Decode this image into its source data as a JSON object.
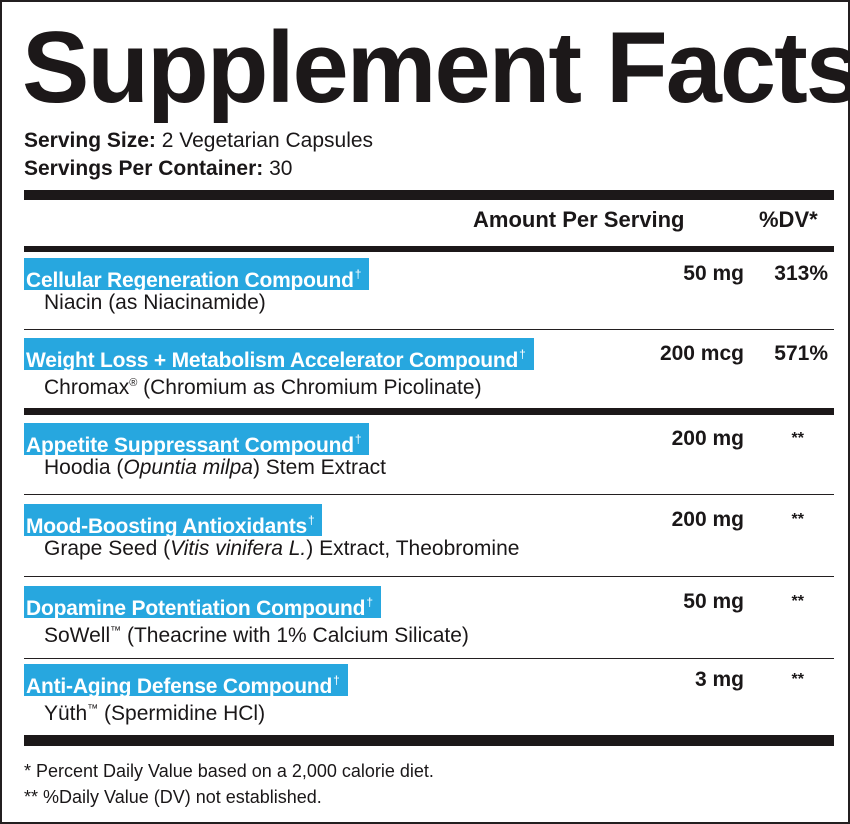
{
  "title": "Supplement Facts",
  "serving_size": {
    "label": "Serving Size:",
    "value": " 2 Vegetarian Capsules"
  },
  "servings_per_container": {
    "label": "Servings Per Container:",
    "value": " 30"
  },
  "header": {
    "amount": "Amount Per Serving",
    "dv": "%DV*"
  },
  "dagger": "†",
  "rows": [
    {
      "compound": "Cellular Regeneration Compound",
      "detail": [
        "Niacin (as Niacinamide)"
      ],
      "amount": "50 mg",
      "dv": "313%"
    },
    {
      "compound": "Weight Loss + Metabolism Accelerator Compound",
      "detail": [
        "Chromax",
        "®",
        " (Chromium as Chromium Picolinate)"
      ],
      "amount": "200 mcg",
      "dv": "571%"
    },
    {
      "compound": "Appetite Suppressant Compound",
      "detail": [
        "Hoodia (",
        "Opuntia milpa",
        ") Stem Extract"
      ],
      "amount": "200 mg",
      "dv": "**"
    },
    {
      "compound": "Mood-Boosting Antioxidants",
      "detail": [
        "Grape Seed (",
        "Vitis vinifera L.",
        ") Extract, Theobromine"
      ],
      "amount": "200 mg",
      "dv": "**"
    },
    {
      "compound": "Dopamine Potentiation Compound",
      "detail": [
        "SoWell",
        "™",
        " (Theacrine with 1% Calcium Silicate)"
      ],
      "amount": "50 mg",
      "dv": "**"
    },
    {
      "compound": "Anti-Aging Defense Compound",
      "detail": [
        "Yüth",
        "™",
        " (Spermidine HCl)"
      ],
      "amount": "3 mg",
      "dv": "**"
    }
  ],
  "footnotes": [
    "* Percent Daily Value based on a 2,000 calorie diet.",
    "** %Daily Value (DV) not established."
  ],
  "colors": {
    "compound_highlight": "#27a7df",
    "text": "#1a1718",
    "rules": "#1c1819"
  }
}
